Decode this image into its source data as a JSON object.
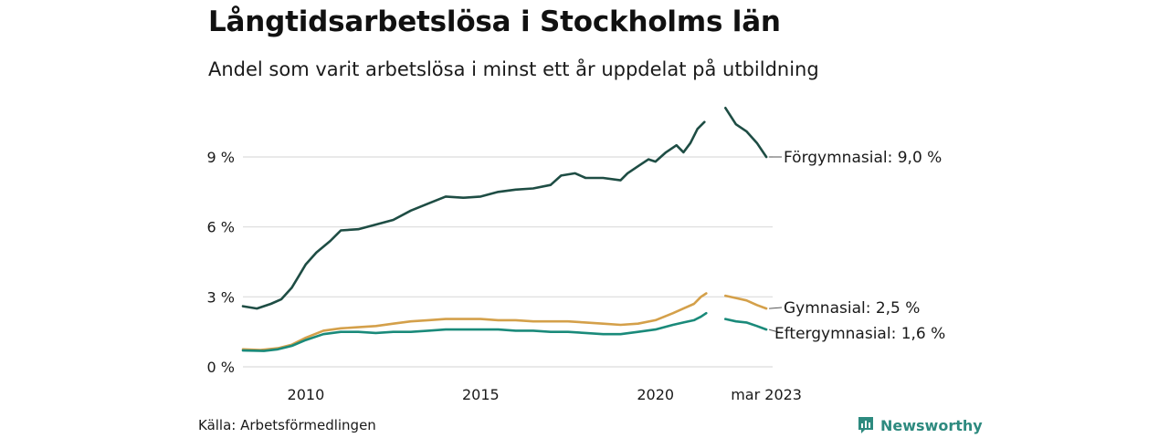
{
  "title": "Långtidsarbetslösa i Stockholms län",
  "subtitle": "Andel som varit arbetslösa i minst ett år uppdelat på utbildning",
  "source": "Källa: Arbetsförmedlingen",
  "brand": {
    "name": "Newsworthy",
    "icon": "newsworthy-logo-icon",
    "color": "#2d8a7f"
  },
  "chart_data": {
    "type": "line",
    "x_tick_labels": [
      "2010",
      "2015",
      "2020",
      "mar 2023"
    ],
    "x_tick_values": [
      2010,
      2015,
      2020,
      2023.17
    ],
    "xlim": [
      2008.2,
      2023.35
    ],
    "y_tick_labels": [
      "0 %",
      "3 %",
      "6 %",
      "9 %"
    ],
    "y_tick_values": [
      0,
      3,
      6,
      9
    ],
    "ylim": [
      0,
      11.5
    ],
    "grid": "horizontal",
    "gap": [
      2021.7,
      2022.0
    ],
    "series": [
      {
        "name": "Förgymnasial",
        "end_label": "Förgymnasial: 9,0 %",
        "color": "#1e4d44",
        "points": [
          [
            2008.2,
            2.6
          ],
          [
            2008.6,
            2.5
          ],
          [
            2009.0,
            2.7
          ],
          [
            2009.3,
            2.9
          ],
          [
            2009.6,
            3.4
          ],
          [
            2009.8,
            3.9
          ],
          [
            2010.0,
            4.4
          ],
          [
            2010.3,
            4.9
          ],
          [
            2010.7,
            5.4
          ],
          [
            2011.0,
            5.85
          ],
          [
            2011.5,
            5.9
          ],
          [
            2012.0,
            6.1
          ],
          [
            2012.5,
            6.3
          ],
          [
            2013.0,
            6.7
          ],
          [
            2013.5,
            7.0
          ],
          [
            2014.0,
            7.3
          ],
          [
            2014.5,
            7.25
          ],
          [
            2015.0,
            7.3
          ],
          [
            2015.5,
            7.5
          ],
          [
            2016.0,
            7.6
          ],
          [
            2016.5,
            7.65
          ],
          [
            2017.0,
            7.8
          ],
          [
            2017.3,
            8.2
          ],
          [
            2017.7,
            8.3
          ],
          [
            2018.0,
            8.1
          ],
          [
            2018.5,
            8.1
          ],
          [
            2019.0,
            8.0
          ],
          [
            2019.2,
            8.3
          ],
          [
            2019.5,
            8.6
          ],
          [
            2019.8,
            8.9
          ],
          [
            2020.0,
            8.8
          ],
          [
            2020.3,
            9.2
          ],
          [
            2020.6,
            9.5
          ],
          [
            2020.8,
            9.2
          ],
          [
            2021.0,
            9.6
          ],
          [
            2021.2,
            10.2
          ],
          [
            2021.4,
            10.5
          ],
          [
            2022.0,
            11.1
          ],
          [
            2022.3,
            10.4
          ],
          [
            2022.6,
            10.1
          ],
          [
            2022.9,
            9.6
          ],
          [
            2023.17,
            9.0
          ]
        ]
      },
      {
        "name": "Gymnasial",
        "end_label": "Gymnasial: 2,5 %",
        "color": "#d4a04a",
        "points": [
          [
            2008.2,
            0.75
          ],
          [
            2008.7,
            0.72
          ],
          [
            2009.2,
            0.8
          ],
          [
            2009.6,
            0.95
          ],
          [
            2010.0,
            1.25
          ],
          [
            2010.5,
            1.55
          ],
          [
            2011.0,
            1.65
          ],
          [
            2011.5,
            1.7
          ],
          [
            2012.0,
            1.75
          ],
          [
            2012.5,
            1.85
          ],
          [
            2013.0,
            1.95
          ],
          [
            2013.5,
            2.0
          ],
          [
            2014.0,
            2.05
          ],
          [
            2014.5,
            2.05
          ],
          [
            2015.0,
            2.05
          ],
          [
            2015.5,
            2.0
          ],
          [
            2016.0,
            2.0
          ],
          [
            2016.5,
            1.95
          ],
          [
            2017.0,
            1.95
          ],
          [
            2017.5,
            1.95
          ],
          [
            2018.0,
            1.9
          ],
          [
            2018.5,
            1.85
          ],
          [
            2019.0,
            1.8
          ],
          [
            2019.5,
            1.85
          ],
          [
            2020.0,
            2.0
          ],
          [
            2020.5,
            2.3
          ],
          [
            2020.8,
            2.5
          ],
          [
            2021.1,
            2.7
          ],
          [
            2021.3,
            3.0
          ],
          [
            2021.45,
            3.15
          ],
          [
            2022.0,
            3.05
          ],
          [
            2022.3,
            2.95
          ],
          [
            2022.6,
            2.85
          ],
          [
            2022.9,
            2.65
          ],
          [
            2023.17,
            2.5
          ]
        ]
      },
      {
        "name": "Eftergymnasial",
        "end_label": "Eftergymnasial: 1,6 %",
        "color": "#1a8a7a",
        "points": [
          [
            2008.2,
            0.7
          ],
          [
            2008.8,
            0.68
          ],
          [
            2009.2,
            0.75
          ],
          [
            2009.6,
            0.9
          ],
          [
            2010.0,
            1.15
          ],
          [
            2010.5,
            1.4
          ],
          [
            2011.0,
            1.5
          ],
          [
            2011.5,
            1.5
          ],
          [
            2012.0,
            1.45
          ],
          [
            2012.5,
            1.5
          ],
          [
            2013.0,
            1.5
          ],
          [
            2013.5,
            1.55
          ],
          [
            2014.0,
            1.6
          ],
          [
            2014.5,
            1.6
          ],
          [
            2015.0,
            1.6
          ],
          [
            2015.5,
            1.6
          ],
          [
            2016.0,
            1.55
          ],
          [
            2016.5,
            1.55
          ],
          [
            2017.0,
            1.5
          ],
          [
            2017.5,
            1.5
          ],
          [
            2018.0,
            1.45
          ],
          [
            2018.5,
            1.4
          ],
          [
            2019.0,
            1.4
          ],
          [
            2019.5,
            1.5
          ],
          [
            2020.0,
            1.6
          ],
          [
            2020.5,
            1.8
          ],
          [
            2020.8,
            1.9
          ],
          [
            2021.1,
            2.0
          ],
          [
            2021.3,
            2.15
          ],
          [
            2021.45,
            2.3
          ],
          [
            2022.0,
            2.05
          ],
          [
            2022.3,
            1.95
          ],
          [
            2022.6,
            1.9
          ],
          [
            2022.9,
            1.75
          ],
          [
            2023.17,
            1.6
          ]
        ]
      }
    ]
  }
}
